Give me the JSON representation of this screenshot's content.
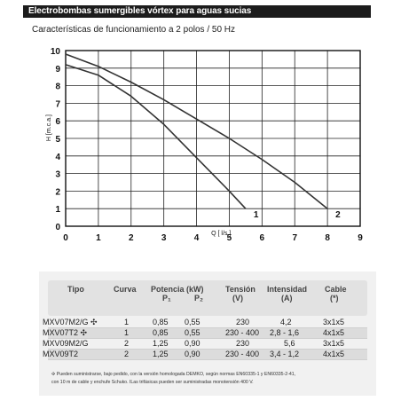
{
  "header": {
    "title": "Electrobombas sumergibles vórtex para aguas sucias"
  },
  "subtitle": "Características de funcionamiento a 2 polos / 50 Hz",
  "chart_data": {
    "type": "line",
    "xlabel": "Q [ l/s ]",
    "ylabel": "H [m.c.a.]",
    "xlim": [
      0,
      9
    ],
    "ylim": [
      0,
      10
    ],
    "xticks": [
      0,
      1,
      2,
      3,
      4,
      5,
      6,
      7,
      8,
      9
    ],
    "yticks": [
      0,
      1,
      2,
      3,
      4,
      5,
      6,
      7,
      8,
      9,
      10
    ],
    "grid": true,
    "series": [
      {
        "name": "1",
        "x": [
          0,
          1,
          2,
          3,
          4,
          5,
          5.5
        ],
        "y": [
          9.2,
          8.6,
          7.4,
          5.8,
          3.9,
          2.0,
          1.0
        ]
      },
      {
        "name": "2",
        "x": [
          0,
          1,
          2,
          3,
          4,
          5,
          6,
          7,
          8
        ],
        "y": [
          9.8,
          9.1,
          8.2,
          7.2,
          6.1,
          5.0,
          3.8,
          2.5,
          1.0
        ]
      }
    ]
  },
  "table": {
    "headers": [
      {
        "label": "Tipo",
        "sub1": "",
        "sub2": ""
      },
      {
        "label": "Curva",
        "sub1": "",
        "sub2": ""
      },
      {
        "label": "Potencia (kW)",
        "sub1": "P₁",
        "sub2": "P₂"
      },
      {
        "label": "Tensión",
        "sub1": "(V)",
        "sub2": ""
      },
      {
        "label": "Intensidad",
        "sub1": "(A)",
        "sub2": ""
      },
      {
        "label": "Cable",
        "sub1": "(*)",
        "sub2": ""
      }
    ],
    "rows": [
      {
        "tipo": "MXV07M2/G ✣",
        "curva": "1",
        "p1": "0,85",
        "p2": "0,55",
        "tension": "230",
        "intensidad": "4,2",
        "cable": "3x1x5"
      },
      {
        "tipo": "MXV07T2 ✣",
        "curva": "1",
        "p1": "0,85",
        "p2": "0,55",
        "tension": "230 - 400",
        "intensidad": "2,8 - 1,6",
        "cable": "4x1x5"
      },
      {
        "tipo": "MXV09M2/G",
        "curva": "2",
        "p1": "1,25",
        "p2": "0,90",
        "tension": "230",
        "intensidad": "5,6",
        "cable": "3x1x5"
      },
      {
        "tipo": "MXV09T2",
        "curva": "2",
        "p1": "1,25",
        "p2": "0,90",
        "tension": "230 - 400",
        "intensidad": "3,4 - 1,2",
        "cable": "4x1x5"
      }
    ],
    "footnote_lines": [
      "✣ Pueden suministrarse, bajo pedido, con la versión homologada DEMKO, según normas EN60335-1 y EN60335-2-41,",
      "con 10 m de cable y enchufe Schuko. ILas trifásicas pueden ser suministradas monotensión 400 V."
    ]
  }
}
